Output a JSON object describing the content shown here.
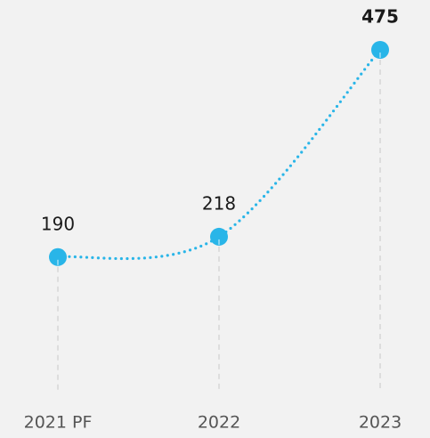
{
  "chart_data": {
    "type": "line",
    "categories": [
      "2021 PF",
      "2022",
      "2023"
    ],
    "values": [
      190,
      218,
      475
    ],
    "color": "#29b5e8"
  }
}
